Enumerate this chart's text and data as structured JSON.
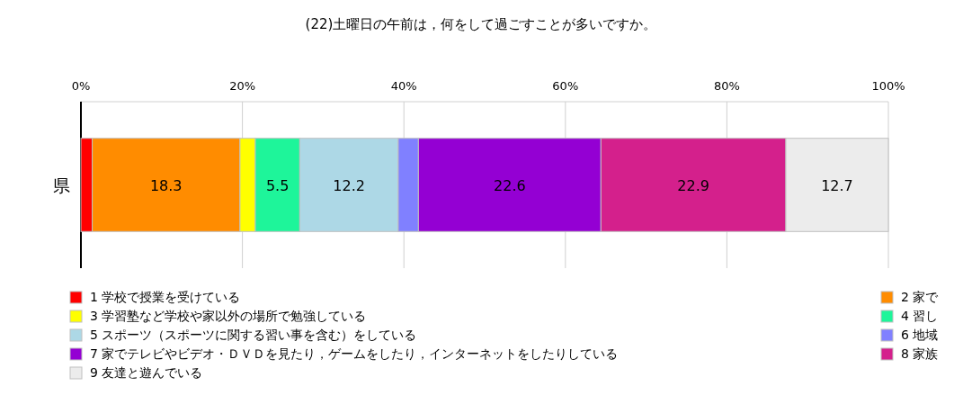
{
  "chart_data": {
    "type": "bar",
    "orientation": "horizontal",
    "stacked": true,
    "title": "(22)土曜日の午前は，何をして過ごすことが多いですか。",
    "categories": [
      "県"
    ],
    "xlim": [
      0,
      100
    ],
    "xticks": [
      {
        "value": 0,
        "label": "0%"
      },
      {
        "value": 20,
        "label": "20%"
      },
      {
        "value": 40,
        "label": "40%"
      },
      {
        "value": 60,
        "label": "60%"
      },
      {
        "value": 80,
        "label": "80%"
      },
      {
        "value": 100,
        "label": "100%"
      }
    ],
    "grid": "x",
    "legend": "bottom",
    "series": [
      {
        "name": "1 学校で授業を受けている",
        "color": "#ff0000",
        "values": [
          1.4
        ],
        "value_labels": [
          null
        ]
      },
      {
        "name": "2 家で",
        "color": "#ff8c00",
        "values": [
          18.3
        ],
        "value_labels": [
          "18.3"
        ]
      },
      {
        "name": "3 学習塾など学校や家以外の場所で勉強している",
        "color": "#ffff00",
        "values": [
          1.9
        ],
        "value_labels": [
          null
        ]
      },
      {
        "name": "4 習し",
        "color": "#1ef59a",
        "values": [
          5.5
        ],
        "value_labels": [
          "5.5"
        ]
      },
      {
        "name": "5 スポーツ（スポーツに関する習い事を含む）をしている",
        "color": "#add8e6",
        "values": [
          12.2
        ],
        "value_labels": [
          "12.2"
        ]
      },
      {
        "name": "6 地域",
        "color": "#8080ff",
        "values": [
          2.5
        ],
        "value_labels": [
          null
        ]
      },
      {
        "name": "7 家でテレビやビデオ・ＤＶＤを見たり，ゲームをしたり，インターネットをしたりしている",
        "color": "#9400d3",
        "values": [
          22.6
        ],
        "value_labels": [
          "22.6"
        ]
      },
      {
        "name": "8 家族",
        "color": "#d4208c",
        "values": [
          22.9
        ],
        "value_labels": [
          "22.9"
        ]
      },
      {
        "name": "9 友達と遊んでいる",
        "color": "#ececec",
        "values": [
          12.7
        ],
        "value_labels": [
          "12.7"
        ]
      }
    ]
  }
}
